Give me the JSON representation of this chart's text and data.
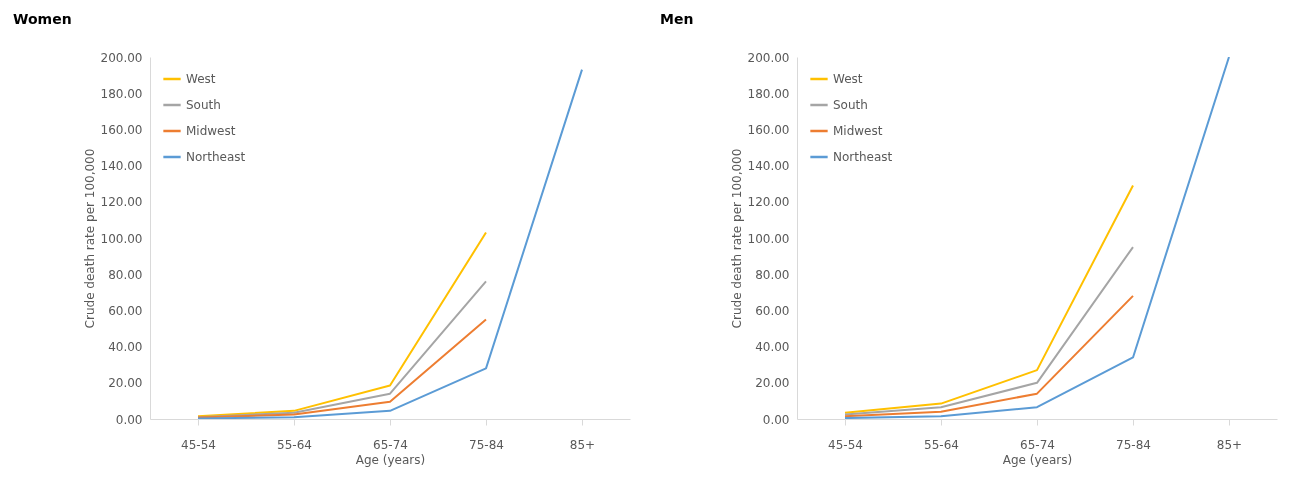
{
  "chart_data": [
    {
      "type": "line",
      "title": "Women",
      "xlabel": "Age (years)",
      "ylabel": "Crude death rate per 100,000",
      "categories": [
        "45-54",
        "55-64",
        "65-74",
        "75-84",
        "85+"
      ],
      "ylim": [
        0,
        200
      ],
      "yticks": [
        {
          "value": 0,
          "label": "0.00"
        },
        {
          "value": 20,
          "label": "20.00"
        },
        {
          "value": 40,
          "label": "40.00"
        },
        {
          "value": 60,
          "label": "60.00"
        },
        {
          "value": 80,
          "label": "80.00"
        },
        {
          "value": 100,
          "label": "100.00"
        },
        {
          "value": 120,
          "label": "120.00"
        },
        {
          "value": 140,
          "label": "140.00"
        },
        {
          "value": 160,
          "label": "160.00"
        },
        {
          "value": 180,
          "label": "180.00"
        },
        {
          "value": 200,
          "label": "200.00"
        }
      ],
      "grid": false,
      "legend": "top left",
      "series": [
        {
          "name": "West",
          "color": "#ffc000",
          "values": [
            1.5,
            4.5,
            18.5,
            103,
            null
          ]
        },
        {
          "name": "South",
          "color": "#a5a5a5",
          "values": [
            1,
            3.5,
            14,
            76,
            null
          ]
        },
        {
          "name": "Midwest",
          "color": "#ed7d31",
          "values": [
            0.8,
            2.5,
            9.5,
            55,
            null
          ]
        },
        {
          "name": "Northeast",
          "color": "#5b9bd5",
          "values": [
            0.3,
            1,
            4.5,
            28,
            193
          ]
        }
      ]
    },
    {
      "type": "line",
      "title": "Men",
      "xlabel": "Age (years)",
      "ylabel": "Crude death rate per 100,000",
      "categories": [
        "45-54",
        "55-64",
        "65-74",
        "75-84",
        "85+"
      ],
      "ylim": [
        0,
        200
      ],
      "yticks": [
        {
          "value": 0,
          "label": "0.00"
        },
        {
          "value": 20,
          "label": "20.00"
        },
        {
          "value": 40,
          "label": "40.00"
        },
        {
          "value": 60,
          "label": "60.00"
        },
        {
          "value": 80,
          "label": "80.00"
        },
        {
          "value": 100,
          "label": "100.00"
        },
        {
          "value": 120,
          "label": "120.00"
        },
        {
          "value": 140,
          "label": "140.00"
        },
        {
          "value": 160,
          "label": "160.00"
        },
        {
          "value": 180,
          "label": "180.00"
        },
        {
          "value": 200,
          "label": "200.00"
        }
      ],
      "grid": false,
      "legend": "top left",
      "series": [
        {
          "name": "West",
          "color": "#ffc000",
          "values": [
            3.5,
            8.5,
            27,
            129,
            null
          ]
        },
        {
          "name": "South",
          "color": "#a5a5a5",
          "values": [
            2.5,
            6.5,
            20,
            95,
            null
          ]
        },
        {
          "name": "Midwest",
          "color": "#ed7d31",
          "values": [
            1.5,
            4,
            14,
            68,
            null
          ]
        },
        {
          "name": "Northeast",
          "color": "#5b9bd5",
          "values": [
            0.5,
            1.5,
            6.5,
            34,
            200
          ]
        }
      ]
    }
  ]
}
